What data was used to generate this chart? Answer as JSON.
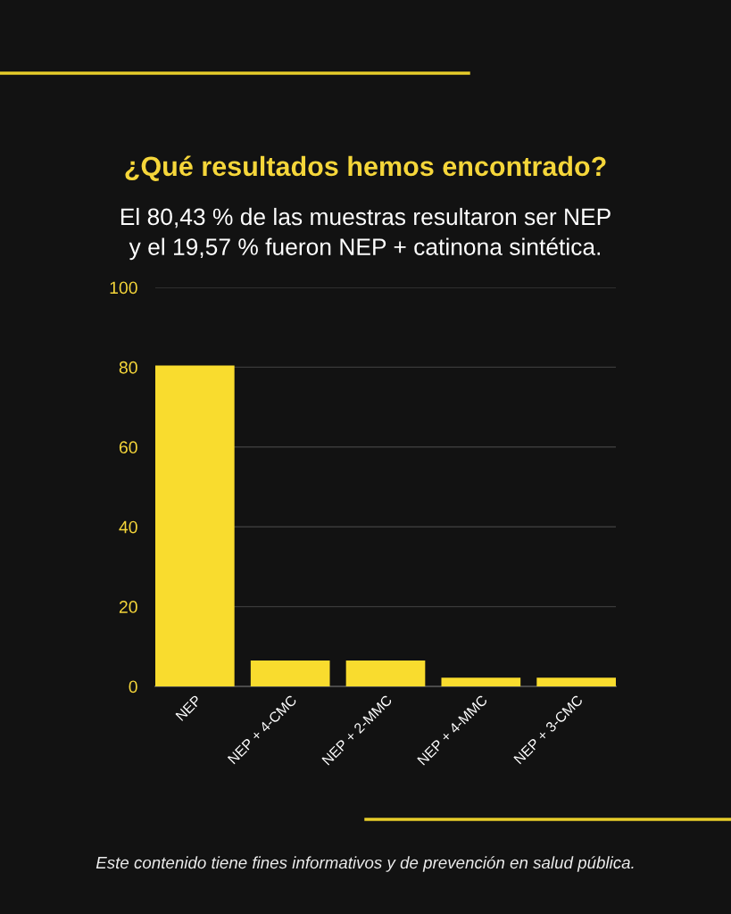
{
  "chart_data": {
    "type": "bar",
    "title": "¿Qué resultados hemos encontrado?",
    "subtitle": "El 80,43 % de las muestras resultaron ser NEP\ny el 19,57 % fueron NEP + catinona sintética.",
    "categories": [
      "NEP",
      "NEP + 4-CMC",
      "NEP + 2-MMC",
      "NEP + 4-MMC",
      "NEP + 3-CMC"
    ],
    "values": [
      80.4,
      6.5,
      6.5,
      2.2,
      2.2
    ],
    "color": "#f9dc2e",
    "ylim": [
      0,
      100
    ],
    "yticks": [
      0,
      20,
      40,
      60,
      80,
      100
    ],
    "grid": "y",
    "annotations": [
      "Este contenido tiene fines informativos y de prevención en salud pública."
    ]
  }
}
